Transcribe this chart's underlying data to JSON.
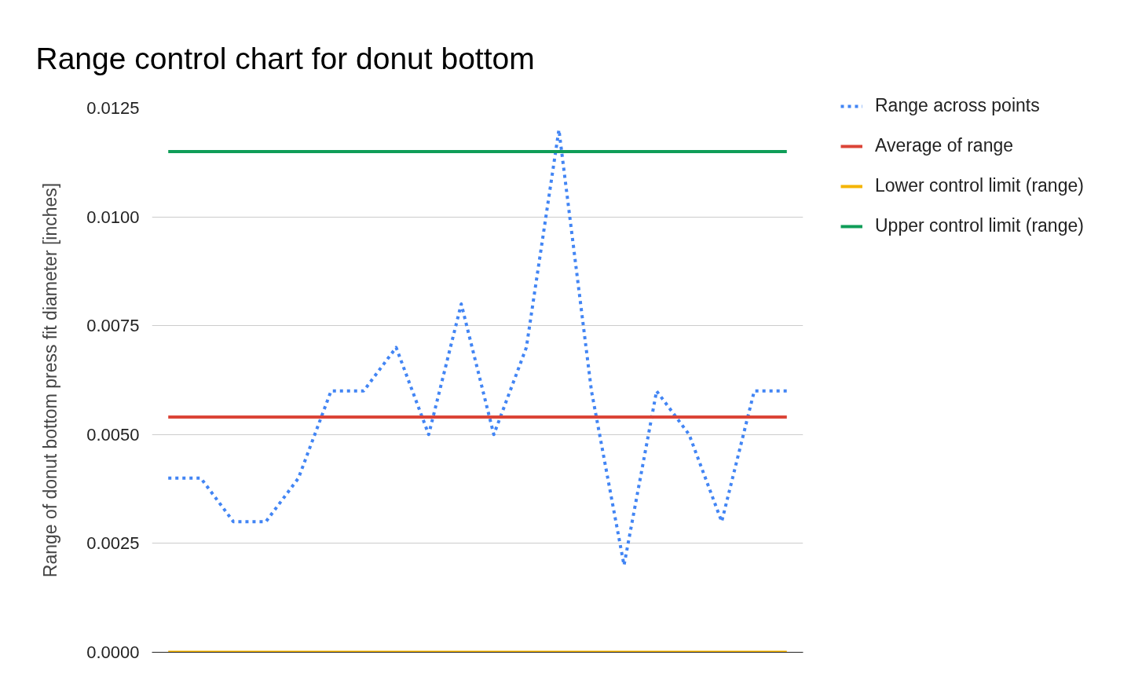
{
  "chart_data": {
    "type": "line",
    "title": "Range control chart for donut bottom",
    "ylabel": "Range of donut bottom press fit diameter [inches]",
    "categories": [
      null,
      null,
      null,
      null,
      null,
      null,
      null,
      null,
      null,
      null,
      null,
      null,
      null,
      null,
      null,
      null,
      null,
      null,
      null,
      null
    ],
    "series": [
      {
        "name": "Range across points",
        "color": "#4285f4",
        "line_style": "dotted",
        "values": [
          0.004,
          0.004,
          0.003,
          0.003,
          0.004,
          0.006,
          0.006,
          0.007,
          0.005,
          0.008,
          0.005,
          0.007,
          0.012,
          0.006,
          0.002,
          0.006,
          0.005,
          0.003,
          0.006,
          0.006
        ]
      },
      {
        "name": "Average of range",
        "color": "#db4437",
        "line_style": "solid",
        "values": [
          0.0054,
          0.0054,
          0.0054,
          0.0054,
          0.0054,
          0.0054,
          0.0054,
          0.0054,
          0.0054,
          0.0054,
          0.0054,
          0.0054,
          0.0054,
          0.0054,
          0.0054,
          0.0054,
          0.0054,
          0.0054,
          0.0054,
          0.0054
        ]
      },
      {
        "name": "Lower control limit (range)",
        "color": "#f4b400",
        "line_style": "solid",
        "values": [
          0,
          0,
          0,
          0,
          0,
          0,
          0,
          0,
          0,
          0,
          0,
          0,
          0,
          0,
          0,
          0,
          0,
          0,
          0,
          0
        ]
      },
      {
        "name": "Upper control limit (range)",
        "color": "#0f9d58",
        "line_style": "solid",
        "values": [
          0.0115,
          0.0115,
          0.0115,
          0.0115,
          0.0115,
          0.0115,
          0.0115,
          0.0115,
          0.0115,
          0.0115,
          0.0115,
          0.0115,
          0.0115,
          0.0115,
          0.0115,
          0.0115,
          0.0115,
          0.0115,
          0.0115,
          0.0115
        ]
      }
    ],
    "ylim": [
      0,
      0.0125
    ],
    "yticks": [
      {
        "value": 0,
        "label": "0.0000"
      },
      {
        "value": 0.0025,
        "label": "0.0025"
      },
      {
        "value": 0.005,
        "label": "0.0050"
      },
      {
        "value": 0.0075,
        "label": "0.0075"
      },
      {
        "value": 0.01,
        "label": "0.0100"
      },
      {
        "value": 0.0125,
        "label": "0.0125"
      }
    ],
    "grid": "y",
    "legend": "right",
    "tick_labels": "y"
  }
}
